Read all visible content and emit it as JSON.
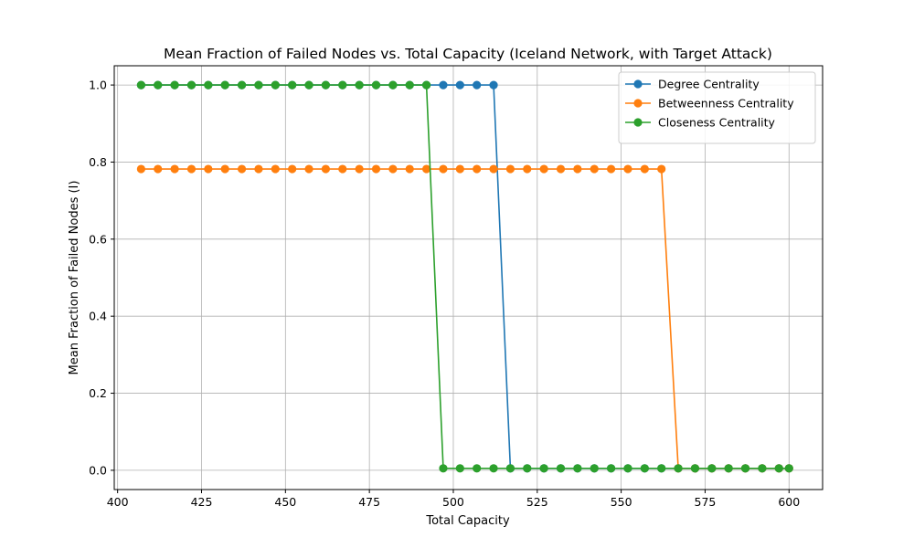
{
  "chart_data": {
    "type": "line",
    "title": "Mean Fraction of Failed Nodes vs. Total Capacity (Iceland Network, with Target Attack)",
    "xlabel": "Total Capacity",
    "ylabel": "Mean Fraction of Failed Nodes (I)",
    "xlim": [
      399,
      610
    ],
    "ylim": [
      -0.05,
      1.05
    ],
    "xticks": [
      400,
      425,
      450,
      475,
      500,
      525,
      550,
      575,
      600
    ],
    "yticks": [
      0.0,
      0.2,
      0.4,
      0.6,
      0.8,
      1.0
    ],
    "xtick_labels": [
      "400",
      "425",
      "450",
      "475",
      "500",
      "525",
      "550",
      "575",
      "600"
    ],
    "ytick_labels": [
      "0.0",
      "0.2",
      "0.4",
      "0.6",
      "0.8",
      "1.0"
    ],
    "grid": true,
    "legend_position": "top-right",
    "x": [
      407,
      412,
      417,
      422,
      427,
      432,
      437,
      442,
      447,
      452,
      457,
      462,
      467,
      472,
      477,
      482,
      487,
      492,
      497,
      502,
      507,
      512,
      517,
      522,
      527,
      532,
      537,
      542,
      547,
      552,
      557,
      562,
      567,
      572,
      577,
      582,
      587,
      592,
      597,
      600
    ],
    "series": [
      {
        "name": "Degree Centrality",
        "color": "#1f77b4",
        "values": [
          1.0,
          1.0,
          1.0,
          1.0,
          1.0,
          1.0,
          1.0,
          1.0,
          1.0,
          1.0,
          1.0,
          1.0,
          1.0,
          1.0,
          1.0,
          1.0,
          1.0,
          1.0,
          1.0,
          1.0,
          1.0,
          1.0,
          0.005,
          0.005,
          0.005,
          0.005,
          0.005,
          0.005,
          0.005,
          0.005,
          0.005,
          0.005,
          0.005,
          0.005,
          0.005,
          0.005,
          0.005,
          0.005,
          0.005,
          0.005
        ]
      },
      {
        "name": "Betweenness Centrality",
        "color": "#ff7f0e",
        "values": [
          0.782,
          0.782,
          0.782,
          0.782,
          0.782,
          0.782,
          0.782,
          0.782,
          0.782,
          0.782,
          0.782,
          0.782,
          0.782,
          0.782,
          0.782,
          0.782,
          0.782,
          0.782,
          0.782,
          0.782,
          0.782,
          0.782,
          0.782,
          0.782,
          0.782,
          0.782,
          0.782,
          0.782,
          0.782,
          0.782,
          0.782,
          0.782,
          0.005,
          0.005,
          0.005,
          0.005,
          0.005,
          0.005,
          0.005,
          0.005
        ]
      },
      {
        "name": "Closeness Centrality",
        "color": "#2ca02c",
        "values": [
          1.0,
          1.0,
          1.0,
          1.0,
          1.0,
          1.0,
          1.0,
          1.0,
          1.0,
          1.0,
          1.0,
          1.0,
          1.0,
          1.0,
          1.0,
          1.0,
          1.0,
          1.0,
          0.005,
          0.005,
          0.005,
          0.005,
          0.005,
          0.005,
          0.005,
          0.005,
          0.005,
          0.005,
          0.005,
          0.005,
          0.005,
          0.005,
          0.005,
          0.005,
          0.005,
          0.005,
          0.005,
          0.005,
          0.005,
          0.005
        ]
      }
    ]
  }
}
